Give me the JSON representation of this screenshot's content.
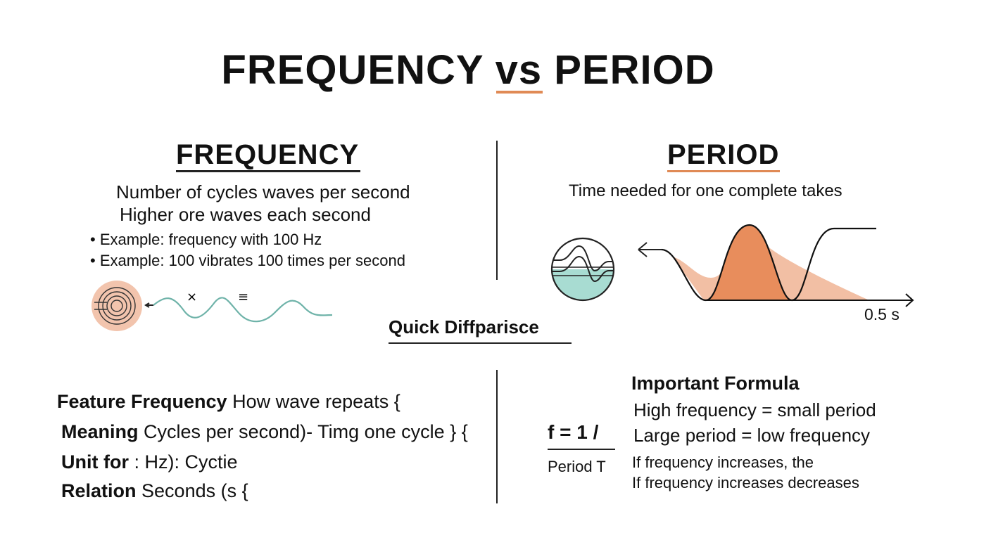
{
  "title": {
    "main": "FREQUENCY vs PERIOD"
  },
  "frequency": {
    "heading": "FREQUENCY",
    "lines": [
      "Number of cycles waves per second",
      "Higher ore waves each second"
    ],
    "bullets": [
      "• Example: frequency with 100 Hz",
      "• Example: 100 vibrates 100 times per second"
    ],
    "wave_symbols": [
      "×",
      "≡"
    ]
  },
  "period": {
    "heading": "PERIOD",
    "description": "Time needed for one complete takes",
    "axis_label": "0.5 s"
  },
  "quick_diff": {
    "heading": "Quick Diffparisce",
    "rows": [
      {
        "label": "Feature Frequency",
        "text": "How wave repeats  {"
      },
      {
        "label": "Meaning",
        "text": "Cycles per second)- Timg one cycle  } {"
      },
      {
        "label": "Unit for",
        "text": ": Hz): Cyctie"
      },
      {
        "label": "Relation",
        "text": "Seconds (s {"
      }
    ]
  },
  "formula": {
    "numerator": "f = 1 /",
    "denominator": "Period T",
    "heading": "Important Formula",
    "lines": [
      "High frequency = small period",
      "Large period = low frequency"
    ],
    "notes": [
      "If frequency increases, the",
      "If frequency increases decreases"
    ]
  },
  "colors": {
    "accent": "#e08a55",
    "teal": "#6fb3a9",
    "peach": "#f2c4ad"
  }
}
